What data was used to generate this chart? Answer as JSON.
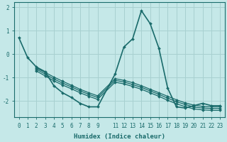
{
  "title": "",
  "xlabel": "Humidex (Indice chaleur)",
  "bg_color": "#c5e8e8",
  "grid_color": "#a8d0d0",
  "line_color": "#1a6b6b",
  "xlim": [
    -0.5,
    23.5
  ],
  "ylim": [
    -2.7,
    2.2
  ],
  "yticks": [
    -2,
    -1,
    0,
    1,
    2
  ],
  "xticks": [
    0,
    1,
    2,
    3,
    4,
    5,
    6,
    7,
    8,
    9,
    11,
    12,
    13,
    14,
    15,
    16,
    17,
    18,
    19,
    20,
    21,
    22,
    23
  ],
  "xtick_labels": [
    "0",
    "1",
    "2",
    "3",
    "4",
    "5",
    "6",
    "7",
    "8",
    "9",
    "11",
    "12",
    "13",
    "14",
    "15",
    "16",
    "17",
    "18",
    "19",
    "20",
    "21",
    "22",
    "23"
  ],
  "lines": [
    {
      "x": [
        0,
        1,
        2,
        3,
        4,
        5,
        6,
        7,
        8,
        9,
        11,
        12,
        13,
        14,
        15,
        16,
        17,
        18,
        19,
        20,
        21,
        22,
        23
      ],
      "y": [
        0.7,
        -0.15,
        -0.55,
        -0.75,
        -1.35,
        -1.65,
        -1.85,
        -2.1,
        -2.25,
        -2.25,
        -0.85,
        0.3,
        0.65,
        1.85,
        1.3,
        0.25,
        -1.45,
        -2.25,
        -2.3,
        -2.2,
        -2.1,
        -2.2,
        -2.2
      ]
    },
    {
      "x": [
        2,
        3,
        4,
        5,
        6,
        7,
        8,
        9,
        11,
        12,
        13,
        14,
        15,
        16,
        17,
        18,
        19,
        20,
        21,
        22,
        23
      ],
      "y": [
        -0.6,
        -0.78,
        -0.98,
        -1.16,
        -1.33,
        -1.5,
        -1.65,
        -1.78,
        -1.05,
        -1.12,
        -1.22,
        -1.35,
        -1.5,
        -1.65,
        -1.8,
        -1.95,
        -2.08,
        -2.18,
        -2.23,
        -2.25,
        -2.25
      ]
    },
    {
      "x": [
        2,
        3,
        4,
        5,
        6,
        7,
        8,
        9,
        11,
        12,
        13,
        14,
        15,
        16,
        17,
        18,
        19,
        20,
        21,
        22,
        23
      ],
      "y": [
        -0.65,
        -0.85,
        -1.06,
        -1.24,
        -1.4,
        -1.57,
        -1.72,
        -1.85,
        -1.12,
        -1.19,
        -1.3,
        -1.42,
        -1.57,
        -1.72,
        -1.88,
        -2.03,
        -2.15,
        -2.26,
        -2.3,
        -2.32,
        -2.32
      ]
    },
    {
      "x": [
        2,
        3,
        4,
        5,
        6,
        7,
        8,
        9,
        11,
        12,
        13,
        14,
        15,
        16,
        17,
        18,
        19,
        20,
        21,
        22,
        23
      ],
      "y": [
        -0.72,
        -0.93,
        -1.14,
        -1.32,
        -1.48,
        -1.65,
        -1.8,
        -1.93,
        -1.2,
        -1.27,
        -1.38,
        -1.5,
        -1.65,
        -1.8,
        -1.97,
        -2.12,
        -2.24,
        -2.34,
        -2.38,
        -2.4,
        -2.4
      ]
    }
  ],
  "tick_fontsize": 5.5,
  "label_fontsize": 6.5
}
